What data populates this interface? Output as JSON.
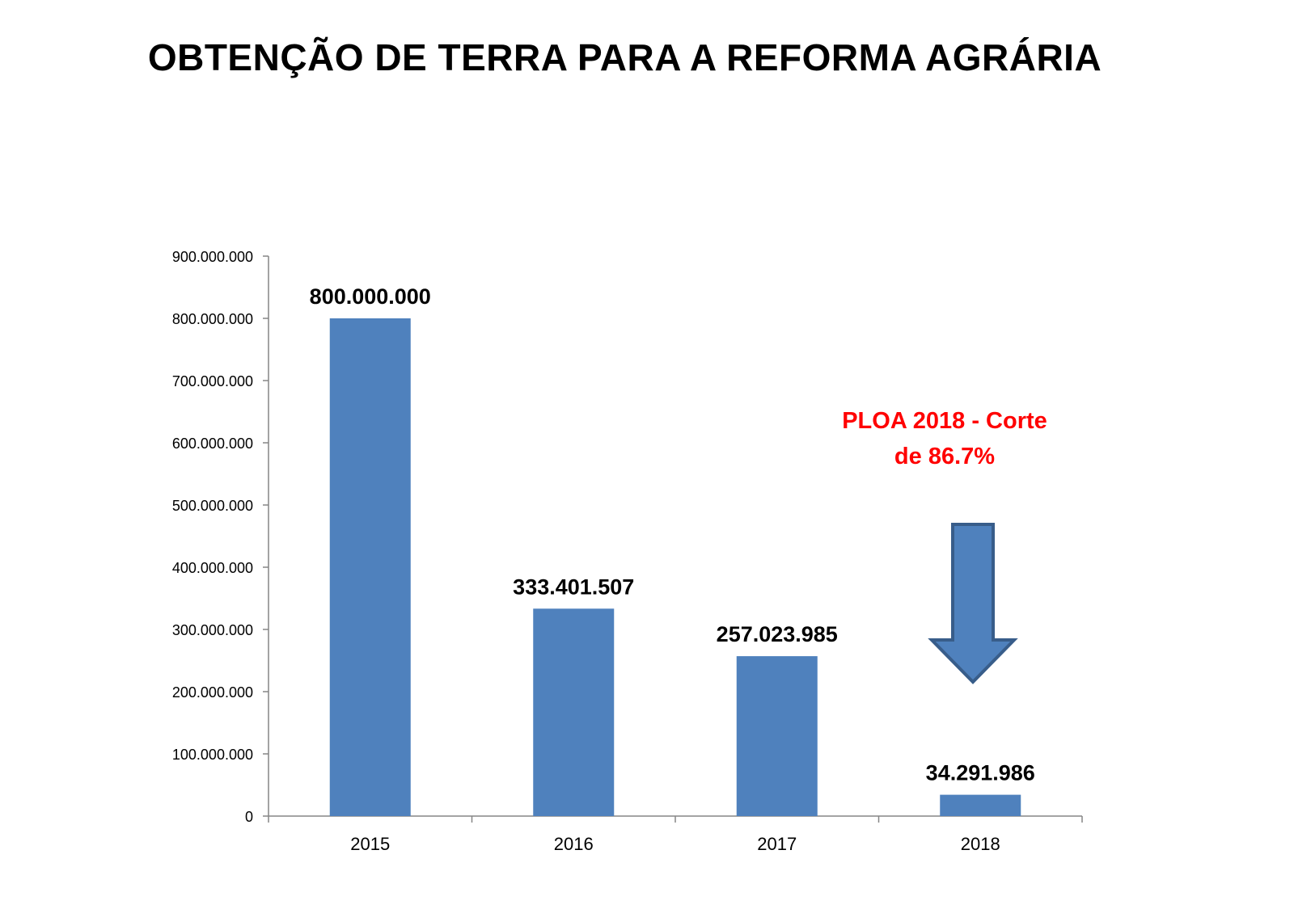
{
  "chart_data": {
    "type": "bar",
    "title": "OBTENÇÃO DE TERRA PARA A REFORMA AGRÁRIA",
    "categories": [
      "2015",
      "2016",
      "2017",
      "2018"
    ],
    "values": [
      800000000,
      333401507,
      257023985,
      34291986
    ],
    "data_labels": [
      "800.000.000",
      "333.401.507",
      "257.023.985",
      "34.291.986"
    ],
    "ylim": [
      0,
      900000000
    ],
    "yticks": [
      0,
      100000000,
      200000000,
      300000000,
      400000000,
      500000000,
      600000000,
      700000000,
      800000000,
      900000000
    ],
    "ytick_labels": [
      "0",
      "100.000.000",
      "200.000.000",
      "300.000.000",
      "400.000.000",
      "500.000.000",
      "600.000.000",
      "700.000.000",
      "800.000.000",
      "900.000.000"
    ],
    "xlabel": "",
    "ylabel": "",
    "grid": false,
    "legend": "none",
    "bar_color": "#4f81bd",
    "annotation": {
      "lines": [
        "PLOA 2018 - Corte",
        "de 86.7%"
      ],
      "color": "#ff0000",
      "arrow": "down-arrow-icon",
      "arrow_color": "#4f81bd",
      "arrow_outline": "#385d8a"
    }
  }
}
